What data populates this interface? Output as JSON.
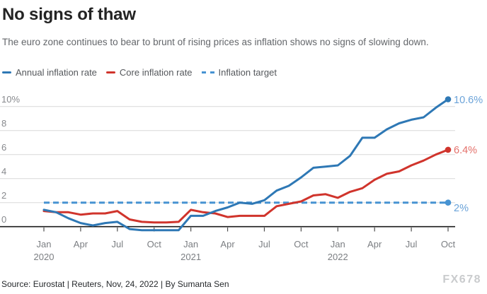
{
  "header": {
    "title": "No signs of thaw",
    "subtitle": "The euro zone continues to bear to brunt of rising prices as inflation shows no signs of slowing down."
  },
  "legend": [
    {
      "label": "Annual inflation rate",
      "color": "#2e78b5",
      "style": "solid"
    },
    {
      "label": "Core inflation rate",
      "color": "#d0342c",
      "style": "solid"
    },
    {
      "label": "Inflation target",
      "color": "#4793d2",
      "style": "dashed"
    }
  ],
  "chart_data": {
    "type": "line",
    "title": "No signs of thaw",
    "categories": [
      "Jan 2020",
      "Feb 2020",
      "Mar 2020",
      "Apr 2020",
      "May 2020",
      "Jun 2020",
      "Jul 2020",
      "Aug 2020",
      "Sep 2020",
      "Oct 2020",
      "Nov 2020",
      "Dec 2020",
      "Jan 2021",
      "Feb 2021",
      "Mar 2021",
      "Apr 2021",
      "May 2021",
      "Jun 2021",
      "Jul 2021",
      "Aug 2021",
      "Sep 2021",
      "Oct 2021",
      "Nov 2021",
      "Dec 2021",
      "Jan 2022",
      "Feb 2022",
      "Mar 2022",
      "Apr 2022",
      "May 2022",
      "Jun 2022",
      "Jul 2022",
      "Aug 2022",
      "Sep 2022",
      "Oct 2022"
    ],
    "series": [
      {
        "id": "annual-inflation",
        "name": "Annual inflation rate",
        "color": "#2e78b5",
        "label_color": "#6ba3d9",
        "end_label": "10.6%",
        "values": [
          1.4,
          1.2,
          0.7,
          0.3,
          0.1,
          0.3,
          0.4,
          -0.2,
          -0.3,
          -0.3,
          -0.3,
          -0.3,
          0.9,
          0.9,
          1.3,
          1.6,
          2.0,
          1.9,
          2.2,
          3.0,
          3.4,
          4.1,
          4.9,
          5.0,
          5.1,
          5.9,
          7.4,
          7.4,
          8.1,
          8.6,
          8.9,
          9.1,
          9.9,
          10.6
        ]
      },
      {
        "id": "core-inflation",
        "name": "Core inflation rate",
        "color": "#d0342c",
        "label_color": "#e4716b",
        "end_label": "6.4%",
        "values": [
          1.3,
          1.2,
          1.2,
          1.0,
          1.1,
          1.1,
          1.3,
          0.6,
          0.4,
          0.35,
          0.35,
          0.4,
          1.4,
          1.2,
          1.1,
          0.8,
          0.9,
          0.9,
          0.9,
          1.7,
          1.9,
          2.1,
          2.6,
          2.7,
          2.4,
          2.9,
          3.2,
          3.9,
          4.4,
          4.6,
          5.1,
          5.5,
          6.0,
          6.4
        ]
      }
    ],
    "target": {
      "id": "inflation-target",
      "name": "Inflation target",
      "value": 2,
      "color": "#4793d2",
      "label_color": "#6ba3d9",
      "end_label": "2%"
    },
    "ylim": [
      0,
      10
    ],
    "yticks": [
      {
        "value": 0,
        "label": "0"
      },
      {
        "value": 2,
        "label": "2"
      },
      {
        "value": 4,
        "label": "4"
      },
      {
        "value": 6,
        "label": "6"
      },
      {
        "value": 8,
        "label": "8"
      },
      {
        "value": 10,
        "label": "10%"
      }
    ],
    "xticks": [
      {
        "index": 0,
        "month": "Jan",
        "year": "2020"
      },
      {
        "index": 3,
        "month": "Apr"
      },
      {
        "index": 6,
        "month": "Jul"
      },
      {
        "index": 9,
        "month": "Oct"
      },
      {
        "index": 12,
        "month": "Jan",
        "year": "2021"
      },
      {
        "index": 15,
        "month": "Apr"
      },
      {
        "index": 18,
        "month": "Jul"
      },
      {
        "index": 21,
        "month": "Oct"
      },
      {
        "index": 24,
        "month": "Jan",
        "year": "2022"
      },
      {
        "index": 27,
        "month": "Apr"
      },
      {
        "index": 30,
        "month": "Jul"
      },
      {
        "index": 33,
        "month": "Oct"
      }
    ],
    "grid": true,
    "legend_position": "top",
    "colors": {
      "grid": "#d9d9d9",
      "axis": "#1b1b1b",
      "tick": "#4e4e4e"
    }
  },
  "footer": {
    "source": "Source: Eurostat | Reuters, Nov, 24, 2022 | By Sumanta Sen",
    "watermark": "FX678"
  }
}
